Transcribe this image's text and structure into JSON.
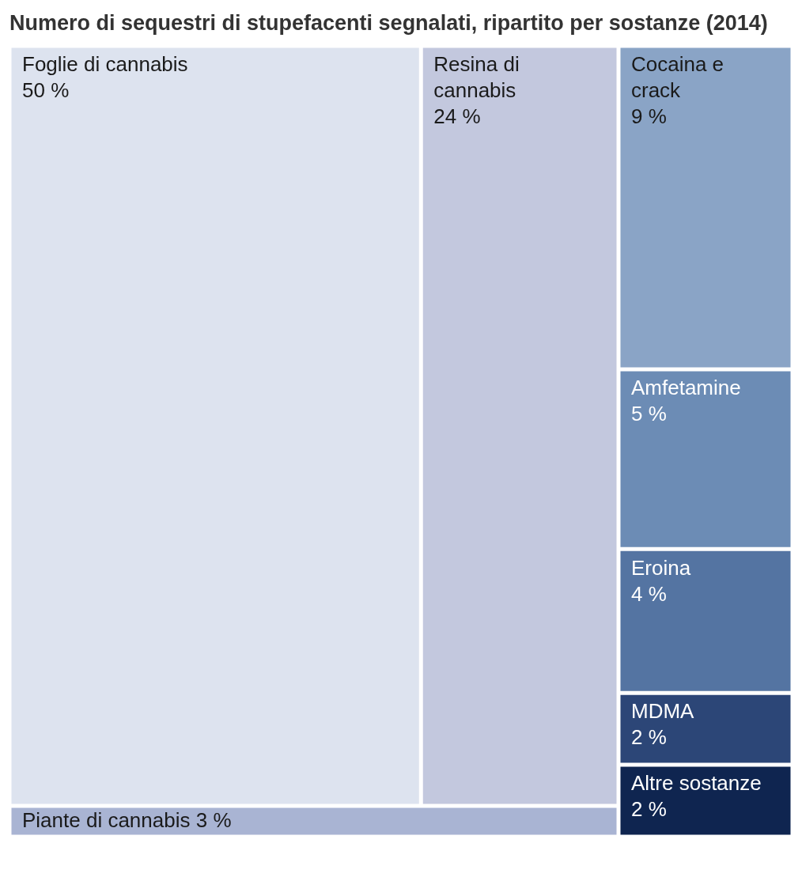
{
  "chart_data": {
    "type": "other",
    "title": "Numero di sequestri di stupefacenti segnalati, ripartito per sostanze (2014)",
    "categories": [
      "Foglie di cannabis",
      "Resina di cannabis",
      "Piante di cannabis",
      "Cocaina e crack",
      "Amfetamine",
      "Eroina",
      "MDMA",
      "Altre sostanze"
    ],
    "values": [
      50,
      24,
      3,
      9,
      5,
      4,
      2,
      2
    ],
    "value_labels": [
      "50 %",
      "24 %",
      "3 %",
      "9 %",
      "5 %",
      "4 %",
      "2 %",
      "2 %"
    ],
    "colors": [
      "#dde3ef",
      "#c3c8de",
      "#a9b4d3",
      "#8aa4c6",
      "#6c8cb5",
      "#5474a2",
      "#2c4677",
      "#0f2550"
    ]
  }
}
